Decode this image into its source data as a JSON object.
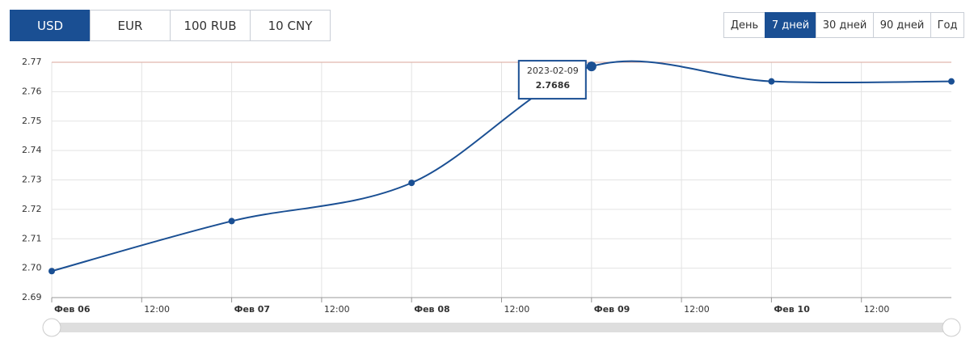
{
  "currencies": [
    "USD",
    "EUR",
    "100 RUB",
    "10 CNY"
  ],
  "periods": [
    "День",
    "7 дней",
    "30 дней",
    "90 дней",
    "Год"
  ],
  "chart_data": {
    "type": "line",
    "x": [
      "2023-02-06",
      "2023-02-07",
      "2023-02-08",
      "2023-02-09",
      "2023-02-10",
      "2023-02-11"
    ],
    "series": [
      {
        "name": "USD",
        "color": "#1a4f93",
        "values": [
          2.699,
          2.716,
          2.729,
          2.7686,
          2.7635,
          2.7635
        ]
      }
    ],
    "xlim": [
      "2023-02-06T00:00",
      "2023-02-11T00:00"
    ],
    "xticks": [
      {
        "value": "2023-02-06T00:00",
        "label": "Фев 06"
      },
      {
        "value": "2023-02-06T12:00",
        "label": "12:00"
      },
      {
        "value": "2023-02-07T00:00",
        "label": "Фев 07"
      },
      {
        "value": "2023-02-07T12:00",
        "label": "12:00"
      },
      {
        "value": "2023-02-08T00:00",
        "label": "Фев 08"
      },
      {
        "value": "2023-02-08T12:00",
        "label": "12:00"
      },
      {
        "value": "2023-02-09T00:00",
        "label": "Фев 09"
      },
      {
        "value": "2023-02-09T12:00",
        "label": "12:00"
      },
      {
        "value": "2023-02-10T00:00",
        "label": "Фев 10"
      },
      {
        "value": "2023-02-10T12:00",
        "label": "12:00"
      }
    ],
    "ylim": [
      2.69,
      2.77
    ],
    "yticks": [
      2.69,
      {
        "value": 2.7,
        "label": "2.70"
      },
      2.71,
      2.72,
      2.73,
      2.74,
      2.75,
      2.76,
      2.77
    ],
    "grid": true,
    "tooltip_index": 3
  }
}
